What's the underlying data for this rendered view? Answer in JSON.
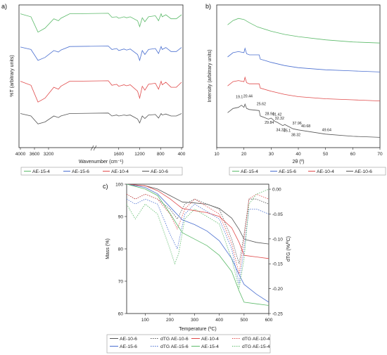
{
  "chart_data": [
    {
      "panel": "a)",
      "type": "line",
      "xlabel": "Wavenumber (cm⁻¹)",
      "ylabel": "%T (arbitrary units)",
      "xticks": [
        "4000",
        "3600",
        "3200",
        "1600",
        "1200",
        "800",
        "400"
      ],
      "series": [
        {
          "name": "AE-15-4",
          "color": "#5cba6a",
          "x": [
            4000,
            3700,
            3500,
            3300,
            3050,
            2920,
            2850,
            2600,
            1800,
            1730,
            1640,
            1600,
            1500,
            1450,
            1380,
            1240,
            1200,
            1150,
            1100,
            1030,
            900,
            840,
            790,
            770,
            700,
            600,
            500,
            400
          ],
          "y": [
            0.92,
            0.86,
            0.55,
            0.63,
            0.82,
            0.78,
            0.83,
            0.92,
            0.93,
            0.85,
            0.86,
            0.83,
            0.86,
            0.84,
            0.86,
            0.78,
            0.66,
            0.84,
            0.76,
            0.86,
            0.88,
            0.78,
            0.92,
            0.86,
            0.9,
            0.82,
            0.82,
            0.9
          ]
        },
        {
          "name": "AE-15-6",
          "color": "#4a6fd0",
          "x": [
            4000,
            3700,
            3500,
            3300,
            3050,
            2920,
            2850,
            2600,
            1800,
            1730,
            1640,
            1600,
            1500,
            1450,
            1380,
            1240,
            1200,
            1150,
            1100,
            1030,
            900,
            840,
            790,
            770,
            700,
            600,
            500,
            400
          ],
          "y": [
            0.93,
            0.88,
            0.66,
            0.72,
            0.86,
            0.83,
            0.87,
            0.94,
            0.95,
            0.88,
            0.9,
            0.86,
            0.89,
            0.87,
            0.89,
            0.78,
            0.66,
            0.86,
            0.78,
            0.88,
            0.9,
            0.8,
            0.94,
            0.88,
            0.92,
            0.84,
            0.84,
            0.92
          ]
        },
        {
          "name": "AE-10-4",
          "color": "#e04a4a",
          "x": [
            4000,
            3700,
            3500,
            3300,
            3050,
            2920,
            2850,
            2600,
            1800,
            1730,
            1640,
            1600,
            1500,
            1450,
            1380,
            1240,
            1200,
            1150,
            1100,
            1030,
            900,
            840,
            790,
            770,
            700,
            600,
            500,
            400
          ],
          "y": [
            0.92,
            0.84,
            0.5,
            0.58,
            0.8,
            0.76,
            0.82,
            0.92,
            0.93,
            0.84,
            0.86,
            0.82,
            0.85,
            0.83,
            0.85,
            0.72,
            0.58,
            0.82,
            0.74,
            0.86,
            0.88,
            0.76,
            0.92,
            0.85,
            0.9,
            0.8,
            0.8,
            0.9
          ]
        },
        {
          "name": "AE-10-6",
          "color": "#555555",
          "x": [
            4000,
            3700,
            3500,
            3300,
            3050,
            2920,
            2850,
            2600,
            1800,
            1730,
            1640,
            1600,
            1500,
            1450,
            1380,
            1240,
            1200,
            1150,
            1100,
            1030,
            900,
            840,
            790,
            770,
            700,
            600,
            500,
            400
          ],
          "y": [
            0.95,
            0.9,
            0.74,
            0.78,
            0.9,
            0.87,
            0.9,
            0.95,
            0.96,
            0.9,
            0.92,
            0.9,
            0.92,
            0.91,
            0.92,
            0.84,
            0.76,
            0.9,
            0.85,
            0.92,
            0.93,
            0.86,
            0.95,
            0.92,
            0.94,
            0.9,
            0.9,
            0.95
          ]
        }
      ]
    },
    {
      "panel": "b)",
      "type": "line",
      "xlabel": "2θ (º)",
      "ylabel": "Intensity (arbitrary units)",
      "xlim": [
        10,
        70
      ],
      "xticks": [
        10,
        20,
        30,
        40,
        50,
        60,
        70
      ],
      "annotations": [
        {
          "text": "19.1",
          "x": 19.1
        },
        {
          "text": "20.44",
          "x": 20.44
        },
        {
          "text": "25.62",
          "x": 25.62
        },
        {
          "text": "28.94",
          "x": 28.94
        },
        {
          "text": "29.84",
          "x": 29.84
        },
        {
          "text": "31.42",
          "x": 31.42
        },
        {
          "text": "32.32",
          "x": 32.32
        },
        {
          "text": "34.32",
          "x": 34.32
        },
        {
          "text": "35.1",
          "x": 35.1
        },
        {
          "text": "37.96",
          "x": 37.96
        },
        {
          "text": "38.32",
          "x": 38.32
        },
        {
          "text": "40.68",
          "x": 40.68
        },
        {
          "text": "49.64",
          "x": 49.64
        }
      ],
      "series": [
        {
          "name": "AE-15-4",
          "color": "#5cba6a",
          "x": [
            14,
            16,
            18,
            20,
            22,
            25,
            30,
            35,
            40,
            50,
            60,
            70
          ],
          "y": [
            0.88,
            0.92,
            0.94,
            0.93,
            0.9,
            0.86,
            0.82,
            0.79,
            0.77,
            0.74,
            0.72,
            0.71
          ]
        },
        {
          "name": "AE-15-6",
          "color": "#4a6fd0",
          "x": [
            14,
            16,
            18,
            20,
            20.4,
            21,
            22,
            25.6,
            26,
            30,
            35,
            40,
            50,
            60,
            70
          ],
          "y": [
            0.58,
            0.62,
            0.63,
            0.62,
            0.66,
            0.61,
            0.6,
            0.6,
            0.56,
            0.53,
            0.5,
            0.48,
            0.46,
            0.45,
            0.44
          ]
        },
        {
          "name": "AE-10-4",
          "color": "#e04a4a",
          "x": [
            14,
            16,
            18,
            20,
            20.4,
            21,
            22,
            25.6,
            26,
            30,
            35,
            40,
            50,
            60,
            70
          ],
          "y": [
            0.31,
            0.35,
            0.36,
            0.35,
            0.39,
            0.34,
            0.33,
            0.33,
            0.29,
            0.26,
            0.23,
            0.21,
            0.19,
            0.18,
            0.17
          ]
        },
        {
          "name": "AE-10-6",
          "color": "#555555",
          "x": [
            14,
            16,
            18,
            19.1,
            20,
            20.4,
            21,
            22,
            25.6,
            26,
            29,
            30,
            31.4,
            32.3,
            34.3,
            35,
            38,
            40,
            45,
            50,
            60,
            70
          ],
          "y": [
            0.06,
            0.1,
            0.11,
            0.13,
            0.11,
            0.14,
            0.1,
            0.09,
            0.08,
            0.03,
            0.0,
            0.01,
            -0.02,
            -0.03,
            -0.06,
            -0.05,
            -0.09,
            -0.1,
            -0.12,
            -0.14,
            -0.16,
            -0.17
          ]
        }
      ]
    },
    {
      "panel": "c)",
      "type": "line",
      "xlabel": "Temperature (ºC)",
      "ylabel": "Mass (%)",
      "ylabel2": "dTG (%/ºC)",
      "xlim": [
        25,
        600
      ],
      "xticks": [
        100,
        200,
        300,
        400,
        500,
        600
      ],
      "ylim": [
        60,
        100
      ],
      "yticks": [
        60,
        70,
        80,
        90,
        100
      ],
      "ylim2": [
        -0.25,
        0.01
      ],
      "yticks2": [
        "0.00",
        "-0.05",
        "-0.10",
        "-0.15",
        "-0.20",
        "-0.25"
      ],
      "series": [
        {
          "name": "AE-10-6",
          "color": "#555555",
          "axis": "left",
          "x": [
            25,
            100,
            150,
            200,
            250,
            300,
            350,
            400,
            450,
            480,
            500,
            550,
            600
          ],
          "y": [
            100,
            99.5,
            98.5,
            96.5,
            94.5,
            94.2,
            93.8,
            92.5,
            89.5,
            86,
            83,
            82,
            81.5
          ]
        },
        {
          "name": "dTG AE-10-6",
          "color": "#555555",
          "axis": "right",
          "dashed": true,
          "x": [
            25,
            60,
            100,
            150,
            200,
            230,
            260,
            300,
            400,
            450,
            480,
            500,
            520,
            550,
            600
          ],
          "y": [
            -0.01,
            -0.02,
            -0.01,
            -0.02,
            -0.04,
            -0.06,
            -0.03,
            -0.02,
            -0.04,
            -0.1,
            -0.15,
            -0.09,
            -0.02,
            -0.02,
            -0.03
          ]
        },
        {
          "name": "AE-10-4",
          "color": "#e04a4a",
          "axis": "left",
          "x": [
            25,
            100,
            150,
            200,
            250,
            300,
            350,
            400,
            450,
            480,
            500,
            550,
            600
          ],
          "y": [
            100,
            99.5,
            98,
            95.5,
            92.5,
            91.8,
            91.2,
            90,
            86.5,
            82,
            78,
            77.5,
            77
          ]
        },
        {
          "name": "dTG AE-10-4",
          "color": "#e04a4a",
          "axis": "right",
          "dashed": true,
          "x": [
            25,
            60,
            100,
            150,
            200,
            230,
            260,
            300,
            400,
            450,
            480,
            500,
            520,
            550,
            600
          ],
          "y": [
            -0.01,
            -0.02,
            -0.01,
            -0.02,
            -0.05,
            -0.08,
            -0.04,
            -0.02,
            -0.05,
            -0.11,
            -0.17,
            -0.1,
            -0.02,
            -0.01,
            -0.02
          ]
        },
        {
          "name": "AE-15-6",
          "color": "#4a6fd0",
          "axis": "left",
          "x": [
            25,
            100,
            150,
            200,
            250,
            300,
            350,
            400,
            450,
            480,
            500,
            550,
            600
          ],
          "y": [
            100,
            99,
            97,
            93,
            89,
            87.5,
            85.5,
            82.5,
            77,
            72,
            69,
            66,
            63.5
          ]
        },
        {
          "name": "dTG AE-15-6",
          "color": "#4a6fd0",
          "axis": "right",
          "dashed": true,
          "x": [
            25,
            60,
            100,
            150,
            200,
            230,
            260,
            300,
            400,
            450,
            480,
            500,
            520,
            550,
            600
          ],
          "y": [
            -0.02,
            -0.03,
            -0.02,
            -0.03,
            -0.09,
            -0.12,
            -0.05,
            -0.03,
            -0.06,
            -0.12,
            -0.19,
            -0.12,
            -0.04,
            -0.04,
            -0.05
          ]
        },
        {
          "name": "AE-15-4",
          "color": "#5cba6a",
          "axis": "left",
          "x": [
            25,
            100,
            150,
            200,
            250,
            300,
            350,
            400,
            450,
            480,
            500,
            550,
            600
          ],
          "y": [
            100,
            98.5,
            96.5,
            91,
            85,
            83,
            81,
            78,
            73,
            67,
            63.5,
            63,
            62.5
          ]
        },
        {
          "name": "dTG AE-15-4",
          "color": "#5cba6a",
          "axis": "right",
          "dashed": true,
          "x": [
            25,
            60,
            100,
            150,
            200,
            220,
            235,
            260,
            300,
            400,
            450,
            480,
            500,
            520,
            550,
            600
          ],
          "y": [
            -0.03,
            -0.06,
            -0.03,
            -0.05,
            -0.12,
            -0.15,
            -0.13,
            -0.06,
            -0.04,
            -0.07,
            -0.14,
            -0.2,
            -0.14,
            -0.03,
            -0.01,
            0.0
          ]
        }
      ]
    }
  ]
}
